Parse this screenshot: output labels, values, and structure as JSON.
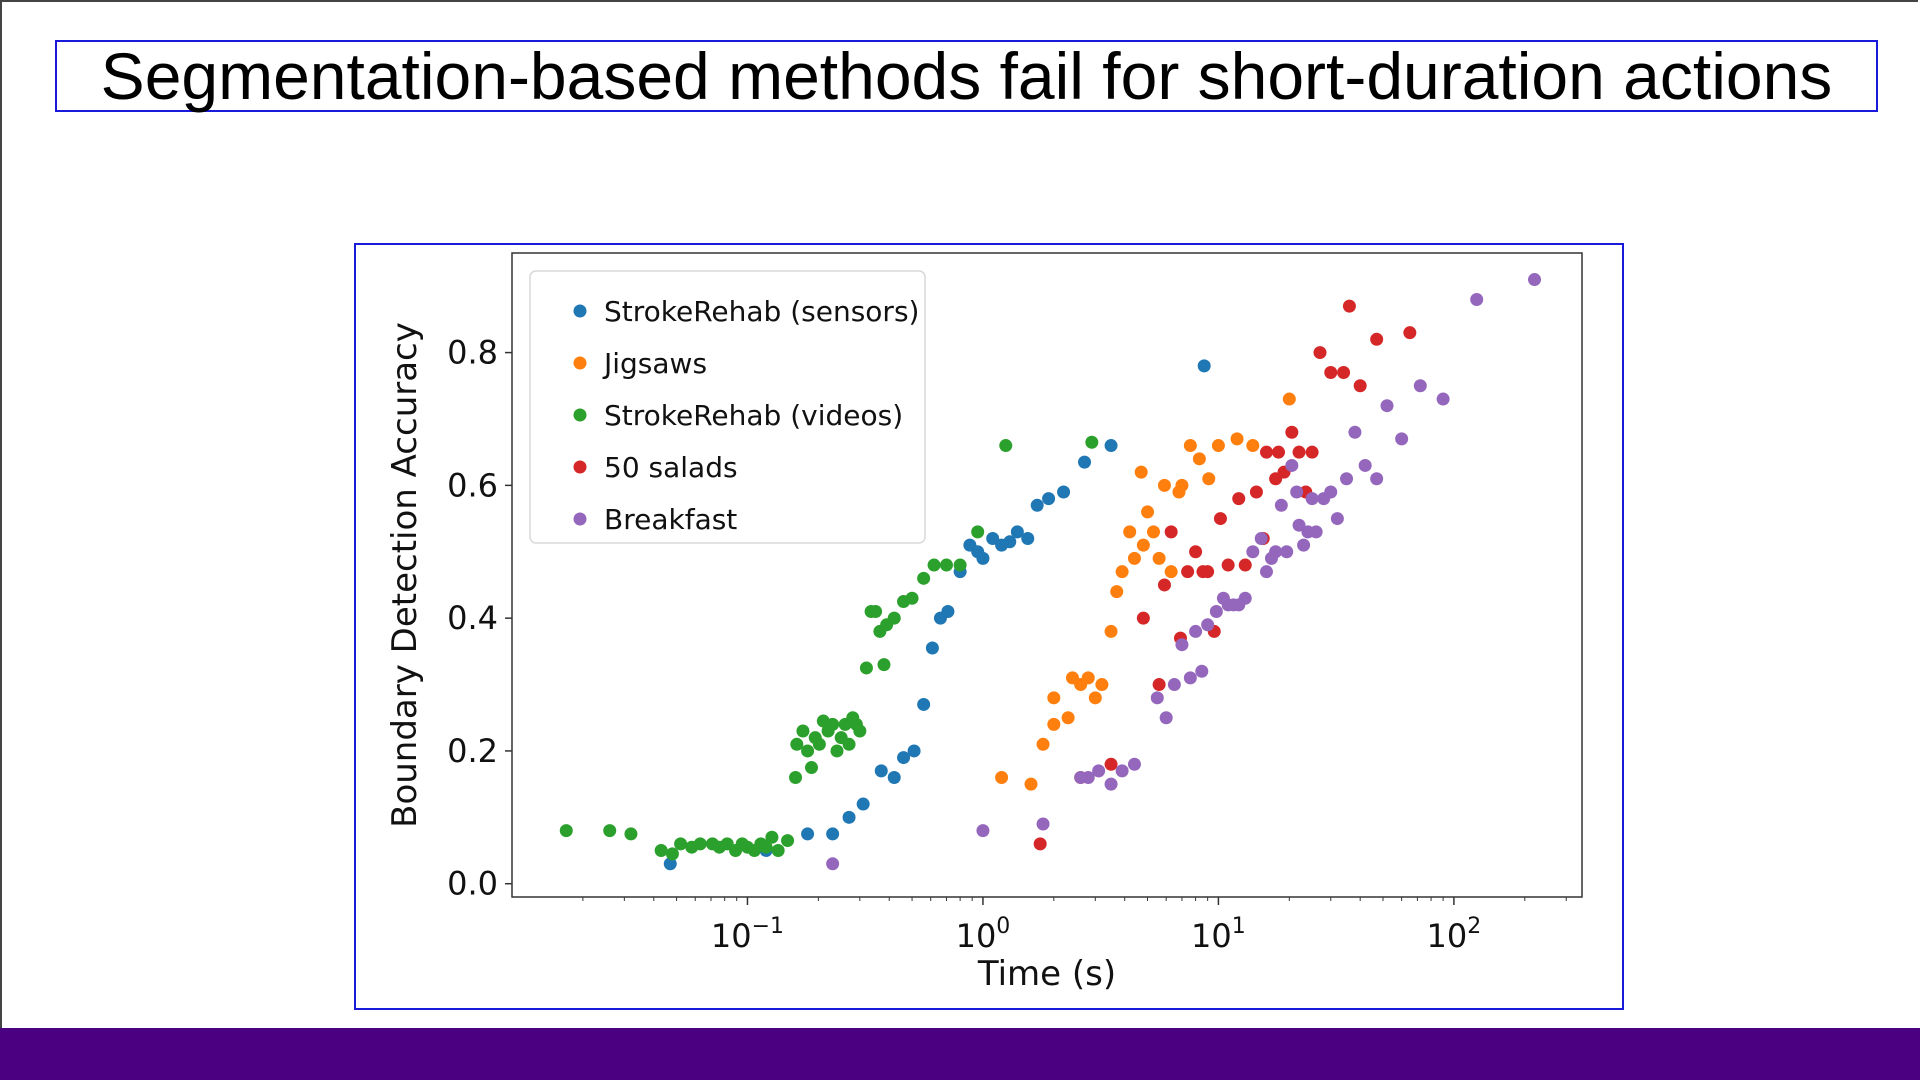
{
  "slide": {
    "title": "Segmentation-based methods fail for short-duration actions",
    "footer_color": "#4b0082",
    "frame_color": "#1a1adb"
  },
  "chart_data": {
    "type": "scatter",
    "title": "",
    "xlabel": "Time (s)",
    "ylabel": "Boundary Detection Accuracy",
    "x_scale": "log",
    "xlim": [
      0.01,
      350
    ],
    "ylim": [
      -0.02,
      0.95
    ],
    "x_ticks": [
      0.1,
      1,
      10,
      100
    ],
    "x_tick_labels": [
      {
        "base": "10",
        "exp": "−1"
      },
      {
        "base": "10",
        "exp": "0"
      },
      {
        "base": "10",
        "exp": "1"
      },
      {
        "base": "10",
        "exp": "2"
      }
    ],
    "y_ticks": [
      0.0,
      0.2,
      0.4,
      0.6,
      0.8
    ],
    "y_tick_labels": [
      "0.0",
      "0.2",
      "0.4",
      "0.6",
      "0.8"
    ],
    "grid": false,
    "legend_position": "top-left",
    "series": [
      {
        "name": "StrokeRehab (sensors)",
        "color": "#1f77b4",
        "points": [
          [
            0.047,
            0.03
          ],
          [
            0.12,
            0.05
          ],
          [
            0.18,
            0.075
          ],
          [
            0.23,
            0.075
          ],
          [
            0.27,
            0.1
          ],
          [
            0.31,
            0.12
          ],
          [
            0.37,
            0.17
          ],
          [
            0.42,
            0.16
          ],
          [
            0.46,
            0.19
          ],
          [
            0.51,
            0.2
          ],
          [
            0.56,
            0.27
          ],
          [
            0.61,
            0.355
          ],
          [
            0.66,
            0.4
          ],
          [
            0.71,
            0.41
          ],
          [
            0.8,
            0.47
          ],
          [
            0.88,
            0.51
          ],
          [
            0.95,
            0.5
          ],
          [
            1.0,
            0.49
          ],
          [
            1.1,
            0.52
          ],
          [
            1.2,
            0.51
          ],
          [
            1.3,
            0.515
          ],
          [
            1.4,
            0.53
          ],
          [
            1.55,
            0.52
          ],
          [
            1.7,
            0.57
          ],
          [
            1.9,
            0.58
          ],
          [
            2.2,
            0.59
          ],
          [
            2.7,
            0.635
          ],
          [
            3.5,
            0.66
          ],
          [
            8.7,
            0.78
          ]
        ]
      },
      {
        "name": "Jigsaws",
        "color": "#ff7f0e",
        "points": [
          [
            1.2,
            0.16
          ],
          [
            1.6,
            0.15
          ],
          [
            1.8,
            0.21
          ],
          [
            2.0,
            0.24
          ],
          [
            2.0,
            0.28
          ],
          [
            2.3,
            0.25
          ],
          [
            2.4,
            0.31
          ],
          [
            2.6,
            0.3
          ],
          [
            2.8,
            0.31
          ],
          [
            3.0,
            0.28
          ],
          [
            3.2,
            0.3
          ],
          [
            2.6,
            0.16
          ],
          [
            3.5,
            0.38
          ],
          [
            3.7,
            0.44
          ],
          [
            3.9,
            0.47
          ],
          [
            4.2,
            0.53
          ],
          [
            4.4,
            0.49
          ],
          [
            4.7,
            0.62
          ],
          [
            4.8,
            0.51
          ],
          [
            5.0,
            0.56
          ],
          [
            5.3,
            0.53
          ],
          [
            5.6,
            0.49
          ],
          [
            5.9,
            0.6
          ],
          [
            6.3,
            0.47
          ],
          [
            6.8,
            0.59
          ],
          [
            7.0,
            0.6
          ],
          [
            7.6,
            0.66
          ],
          [
            8.3,
            0.64
          ],
          [
            9.1,
            0.61
          ],
          [
            10.0,
            0.66
          ],
          [
            12.0,
            0.67
          ],
          [
            14.0,
            0.66
          ],
          [
            20.0,
            0.73
          ]
        ]
      },
      {
        "name": "StrokeRehab (videos)",
        "color": "#2ca02c",
        "points": [
          [
            0.017,
            0.08
          ],
          [
            0.026,
            0.08
          ],
          [
            0.032,
            0.075
          ],
          [
            0.043,
            0.05
          ],
          [
            0.048,
            0.045
          ],
          [
            0.052,
            0.06
          ],
          [
            0.058,
            0.055
          ],
          [
            0.063,
            0.06
          ],
          [
            0.071,
            0.06
          ],
          [
            0.076,
            0.055
          ],
          [
            0.082,
            0.06
          ],
          [
            0.089,
            0.05
          ],
          [
            0.095,
            0.06
          ],
          [
            0.1,
            0.055
          ],
          [
            0.107,
            0.05
          ],
          [
            0.114,
            0.06
          ],
          [
            0.12,
            0.055
          ],
          [
            0.127,
            0.07
          ],
          [
            0.135,
            0.05
          ],
          [
            0.148,
            0.065
          ],
          [
            0.16,
            0.16
          ],
          [
            0.162,
            0.21
          ],
          [
            0.172,
            0.23
          ],
          [
            0.18,
            0.2
          ],
          [
            0.187,
            0.175
          ],
          [
            0.194,
            0.22
          ],
          [
            0.202,
            0.21
          ],
          [
            0.21,
            0.245
          ],
          [
            0.22,
            0.23
          ],
          [
            0.23,
            0.24
          ],
          [
            0.24,
            0.2
          ],
          [
            0.25,
            0.22
          ],
          [
            0.26,
            0.24
          ],
          [
            0.27,
            0.21
          ],
          [
            0.28,
            0.25
          ],
          [
            0.29,
            0.24
          ],
          [
            0.3,
            0.23
          ],
          [
            0.32,
            0.325
          ],
          [
            0.335,
            0.41
          ],
          [
            0.35,
            0.41
          ],
          [
            0.365,
            0.38
          ],
          [
            0.38,
            0.33
          ],
          [
            0.39,
            0.39
          ],
          [
            0.42,
            0.4
          ],
          [
            0.46,
            0.425
          ],
          [
            0.5,
            0.43
          ],
          [
            0.56,
            0.46
          ],
          [
            0.62,
            0.48
          ],
          [
            0.7,
            0.48
          ],
          [
            0.8,
            0.48
          ],
          [
            0.95,
            0.53
          ],
          [
            1.25,
            0.66
          ],
          [
            2.9,
            0.665
          ]
        ]
      },
      {
        "name": "50 salads",
        "color": "#d62728",
        "points": [
          [
            1.75,
            0.06
          ],
          [
            3.5,
            0.18
          ],
          [
            4.8,
            0.4
          ],
          [
            5.6,
            0.3
          ],
          [
            5.9,
            0.45
          ],
          [
            6.3,
            0.53
          ],
          [
            6.9,
            0.37
          ],
          [
            7.4,
            0.47
          ],
          [
            8.0,
            0.5
          ],
          [
            8.6,
            0.47
          ],
          [
            9.0,
            0.47
          ],
          [
            9.6,
            0.38
          ],
          [
            10.2,
            0.55
          ],
          [
            11.0,
            0.48
          ],
          [
            12.2,
            0.58
          ],
          [
            13.0,
            0.48
          ],
          [
            14.5,
            0.59
          ],
          [
            15.5,
            0.52
          ],
          [
            16.0,
            0.65
          ],
          [
            17.5,
            0.61
          ],
          [
            18.0,
            0.65
          ],
          [
            19.0,
            0.62
          ],
          [
            20.5,
            0.68
          ],
          [
            22.0,
            0.65
          ],
          [
            23.5,
            0.59
          ],
          [
            25.0,
            0.65
          ],
          [
            27.0,
            0.8
          ],
          [
            30.0,
            0.77
          ],
          [
            34.0,
            0.77
          ],
          [
            36.0,
            0.87
          ],
          [
            40.0,
            0.75
          ],
          [
            47.0,
            0.82
          ],
          [
            65.0,
            0.83
          ]
        ]
      },
      {
        "name": "Breakfast",
        "color": "#9467bd",
        "points": [
          [
            0.23,
            0.03
          ],
          [
            1.0,
            0.08
          ],
          [
            1.8,
            0.09
          ],
          [
            2.6,
            0.16
          ],
          [
            2.8,
            0.16
          ],
          [
            3.1,
            0.17
          ],
          [
            3.5,
            0.15
          ],
          [
            3.9,
            0.17
          ],
          [
            4.4,
            0.18
          ],
          [
            5.5,
            0.28
          ],
          [
            6.0,
            0.25
          ],
          [
            6.5,
            0.3
          ],
          [
            7.0,
            0.36
          ],
          [
            7.6,
            0.31
          ],
          [
            8.0,
            0.38
          ],
          [
            8.5,
            0.32
          ],
          [
            9.0,
            0.39
          ],
          [
            9.8,
            0.41
          ],
          [
            10.5,
            0.43
          ],
          [
            11.0,
            0.42
          ],
          [
            11.6,
            0.42
          ],
          [
            12.2,
            0.42
          ],
          [
            13.0,
            0.43
          ],
          [
            14.0,
            0.5
          ],
          [
            15.2,
            0.52
          ],
          [
            16.0,
            0.47
          ],
          [
            16.8,
            0.49
          ],
          [
            17.5,
            0.5
          ],
          [
            18.5,
            0.57
          ],
          [
            19.5,
            0.5
          ],
          [
            20.5,
            0.63
          ],
          [
            21.5,
            0.59
          ],
          [
            22.0,
            0.54
          ],
          [
            23.0,
            0.51
          ],
          [
            24.0,
            0.53
          ],
          [
            25.0,
            0.58
          ],
          [
            26.0,
            0.53
          ],
          [
            28.0,
            0.58
          ],
          [
            30.0,
            0.59
          ],
          [
            32.0,
            0.55
          ],
          [
            35.0,
            0.61
          ],
          [
            38.0,
            0.68
          ],
          [
            42.0,
            0.63
          ],
          [
            47.0,
            0.61
          ],
          [
            52.0,
            0.72
          ],
          [
            60.0,
            0.67
          ],
          [
            72.0,
            0.75
          ],
          [
            90.0,
            0.73
          ],
          [
            125.0,
            0.88
          ],
          [
            220.0,
            0.91
          ]
        ]
      }
    ]
  }
}
